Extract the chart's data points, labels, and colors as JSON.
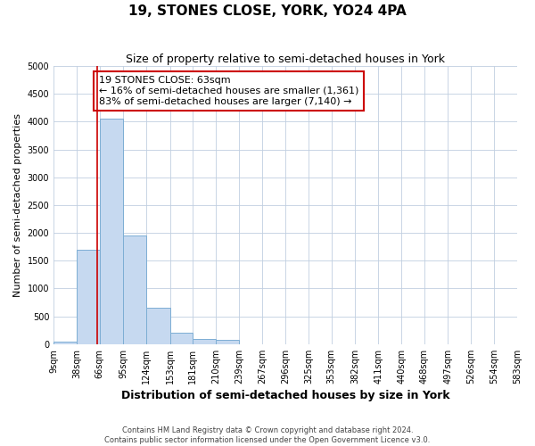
{
  "title": "19, STONES CLOSE, YORK, YO24 4PA",
  "subtitle": "Size of property relative to semi-detached houses in York",
  "xlabel": "Distribution of semi-detached houses by size in York",
  "ylabel": "Number of semi-detached properties",
  "footnote": "Contains HM Land Registry data © Crown copyright and database right 2024.\nContains public sector information licensed under the Open Government Licence v3.0.",
  "bins": [
    9,
    38,
    66,
    95,
    124,
    153,
    181,
    210,
    239,
    267,
    296,
    325,
    353,
    382,
    411,
    440,
    468,
    497,
    526,
    554,
    583
  ],
  "bin_labels": [
    "9sqm",
    "38sqm",
    "66sqm",
    "95sqm",
    "124sqm",
    "153sqm",
    "181sqm",
    "210sqm",
    "239sqm",
    "267sqm",
    "296sqm",
    "325sqm",
    "353sqm",
    "382sqm",
    "411sqm",
    "440sqm",
    "468sqm",
    "497sqm",
    "526sqm",
    "554sqm",
    "583sqm"
  ],
  "counts": [
    50,
    1700,
    4050,
    1950,
    650,
    200,
    100,
    80,
    0,
    0,
    0,
    0,
    0,
    0,
    0,
    0,
    0,
    0,
    0,
    0
  ],
  "bar_color": "#c6d9f0",
  "bar_edge_color": "#7daed4",
  "property_size": 63,
  "property_line_color": "#cc0000",
  "annotation_text": "19 STONES CLOSE: 63sqm\n← 16% of semi-detached houses are smaller (1,361)\n83% of semi-detached houses are larger (7,140) →",
  "annotation_box_color": "#ffffff",
  "annotation_box_edge": "#cc0000",
  "ylim": [
    0,
    5000
  ],
  "yticks": [
    0,
    500,
    1000,
    1500,
    2000,
    2500,
    3000,
    3500,
    4000,
    4500,
    5000
  ],
  "grid_color": "#c0cfe0",
  "background_color": "#ffffff",
  "title_fontsize": 11,
  "subtitle_fontsize": 9,
  "xlabel_fontsize": 9,
  "ylabel_fontsize": 8,
  "tick_fontsize": 7,
  "annotation_fontsize": 8,
  "footnote_fontsize": 6
}
